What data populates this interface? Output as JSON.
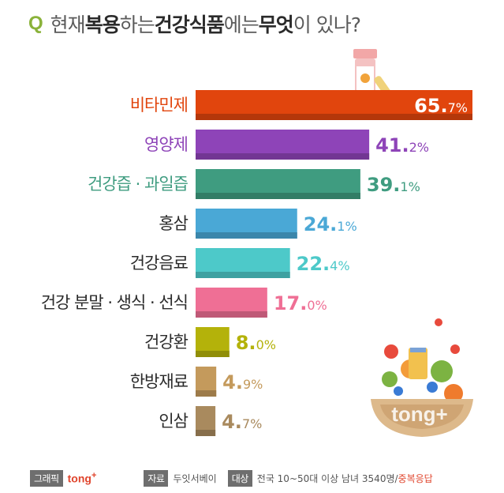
{
  "title": {
    "q": "Q",
    "parts": [
      "현재 ",
      "복용",
      "하는 ",
      "건강식품",
      "에는 ",
      "무엇",
      "이 있나?"
    ]
  },
  "chart_data": {
    "type": "bar",
    "orientation": "horizontal",
    "categories": [
      "비타민제",
      "영양제",
      "건강즙 · 과일즙",
      "홍삼",
      "건강음료",
      "건강 분말 · 생식 · 선식",
      "건강환",
      "한방재료",
      "인삼"
    ],
    "values": [
      65.7,
      41.2,
      39.1,
      24.1,
      22.4,
      17.0,
      8.0,
      4.9,
      4.7
    ],
    "value_labels": [
      [
        "65.",
        "7%"
      ],
      [
        "41.",
        "2%"
      ],
      [
        "39.",
        "1%"
      ],
      [
        "24.",
        "1%"
      ],
      [
        "22.",
        "4%"
      ],
      [
        "17.",
        "0%"
      ],
      [
        "8.",
        "0%"
      ],
      [
        "4.",
        "9%"
      ],
      [
        "4.",
        "7%"
      ]
    ],
    "colors": [
      "#e1450d",
      "#8e44b8",
      "#3f9c80",
      "#4aa8d6",
      "#4dc9c9",
      "#ef6f95",
      "#b4b20a",
      "#c49a5c",
      "#a98a5e"
    ],
    "unit": "%",
    "xlim": [
      0,
      65.7
    ]
  },
  "footer": {
    "graphic_tag": "그래픽",
    "brand": "tong",
    "brand_plus": "+",
    "source_tag": "자료",
    "source": "두잇서베이",
    "target_tag": "대상",
    "target": "전국 10~50대 이상 남녀 3540명/",
    "target_note": " 중복응답"
  },
  "watermark": "tong+"
}
